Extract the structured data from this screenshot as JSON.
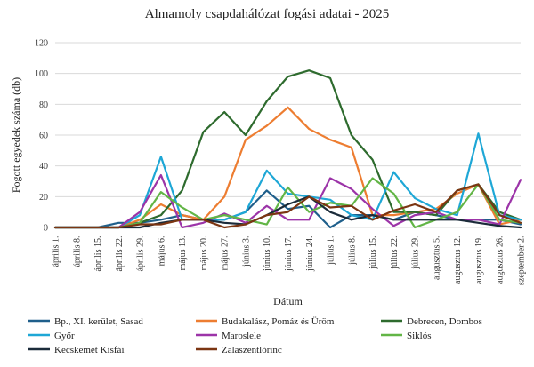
{
  "chart_data": {
    "type": "line",
    "title": "Almamoly csapdahálózat fogási adatai - 2025",
    "xlabel": "Dátum",
    "ylabel": "Fogott egyedek száma (db)",
    "ylim": [
      0,
      120
    ],
    "yticks": [
      0,
      20,
      40,
      60,
      80,
      100,
      120
    ],
    "grid": "horizontal",
    "legend_position": "bottom",
    "categories": [
      "április 1.",
      "április 8.",
      "április 15.",
      "április 22.",
      "április 29.",
      "május 6.",
      "május 13.",
      "május 20.",
      "május 27.",
      "június 3.",
      "június 10.",
      "június 17.",
      "június 24.",
      "július 1.",
      "július 8.",
      "július 15.",
      "július 22.",
      "július 29.",
      "augusztus 5.",
      "augusztus 12.",
      "augusztus 19.",
      "augusztus 26.",
      "szeptember 2."
    ],
    "series": [
      {
        "name": "Bp., XI. kerület, Sasad",
        "color": "#1f5f8b",
        "values": [
          0,
          0,
          0,
          3,
          3,
          5,
          8,
          5,
          5,
          10,
          24,
          12,
          14,
          0,
          8,
          8,
          5,
          10,
          8,
          5,
          5,
          5,
          2
        ]
      },
      {
        "name": "Budakalász, Pomáz és Üröm",
        "color": "#ed7d31",
        "values": [
          0,
          0,
          0,
          0,
          5,
          15,
          8,
          5,
          20,
          57,
          66,
          78,
          64,
          57,
          52,
          8,
          8,
          10,
          12,
          22,
          28,
          2,
          5
        ]
      },
      {
        "name": "Debrecen, Dombos",
        "color": "#2e6b2e",
        "values": [
          0,
          0,
          0,
          0,
          3,
          8,
          24,
          62,
          75,
          60,
          82,
          98,
          102,
          97,
          60,
          44,
          10,
          10,
          8,
          24,
          28,
          10,
          5
        ]
      },
      {
        "name": "Győr",
        "color": "#1ea7d6",
        "values": [
          0,
          0,
          0,
          0,
          8,
          46,
          5,
          5,
          5,
          10,
          37,
          22,
          20,
          18,
          8,
          5,
          36,
          19,
          12,
          8,
          61,
          8,
          5
        ]
      },
      {
        "name": "Maroslele",
        "color": "#9c34a8",
        "values": [
          0,
          0,
          0,
          0,
          10,
          34,
          0,
          3,
          9,
          3,
          14,
          5,
          5,
          32,
          25,
          12,
          1,
          8,
          10,
          5,
          5,
          2,
          31
        ]
      },
      {
        "name": "Siklós",
        "color": "#62b546",
        "values": [
          0,
          0,
          0,
          0,
          3,
          23,
          13,
          5,
          8,
          5,
          2,
          26,
          10,
          16,
          14,
          32,
          22,
          0,
          5,
          10,
          28,
          5,
          3
        ]
      },
      {
        "name": "Kecskemét Kisfái",
        "color": "#1b2b3a",
        "values": [
          0,
          0,
          0,
          0,
          0,
          3,
          5,
          5,
          3,
          2,
          8,
          15,
          20,
          10,
          5,
          8,
          5,
          5,
          5,
          5,
          3,
          1,
          0
        ]
      },
      {
        "name": "Zalaszentlőrinc",
        "color": "#7b3512",
        "values": [
          0,
          0,
          0,
          0,
          2,
          2,
          5,
          5,
          0,
          2,
          8,
          10,
          20,
          13,
          14,
          5,
          11,
          15,
          10,
          24,
          28,
          8,
          3
        ]
      }
    ]
  }
}
